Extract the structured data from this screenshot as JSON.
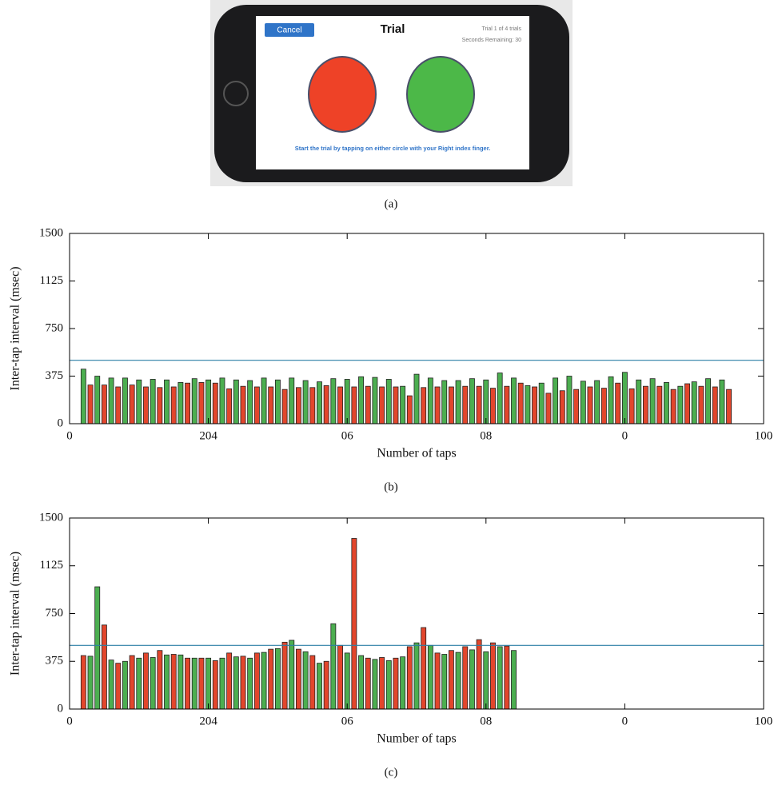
{
  "phone": {
    "cancel": "Cancel",
    "title": "Trial",
    "trial_count": "Trial 1 of 4 trials",
    "seconds": "Seconds Remaining: 30",
    "instruction": "Start the trial by tapping on either circle with your Right index finger.",
    "caption": "(a)"
  },
  "chart_data": [
    {
      "type": "bar",
      "caption": "(b)",
      "xlabel": "Number of taps",
      "ylabel": "Inter-tap interval (msec)",
      "xlim": [
        0,
        100
      ],
      "ylim": [
        0,
        1500
      ],
      "xticks": [
        0,
        {
          "value": 20,
          "label": "204"
        },
        {
          "value": 40,
          "label": "06"
        },
        {
          "value": 60,
          "label": "08"
        },
        {
          "value": 80,
          "label": "0"
        },
        100
      ],
      "yticks": [
        0,
        375,
        750,
        1125,
        1500
      ],
      "threshold": 500,
      "threshold_color": "#2b7fa6",
      "series": [
        {
          "color": "#4cae50",
          "x": [
            2,
            4,
            6,
            8,
            10,
            12,
            14,
            16,
            18,
            20,
            22,
            24,
            26,
            28,
            30,
            32,
            34,
            36,
            38,
            40,
            42,
            44,
            46,
            48,
            50,
            52,
            54,
            56,
            58,
            60,
            62,
            64,
            66,
            68,
            70,
            72,
            74,
            76,
            78,
            80,
            82,
            84,
            86,
            88,
            90,
            92,
            94
          ],
          "values": [
            430,
            375,
            360,
            360,
            345,
            350,
            345,
            325,
            355,
            345,
            360,
            345,
            340,
            360,
            345,
            360,
            340,
            330,
            355,
            350,
            370,
            365,
            350,
            295,
            390,
            360,
            340,
            340,
            355,
            345,
            400,
            360,
            300,
            320,
            360,
            375,
            335,
            340,
            370,
            405,
            345,
            355,
            325,
            295,
            330,
            355,
            345
          ]
        },
        {
          "color": "#e2462c",
          "x": [
            3,
            5,
            7,
            9,
            11,
            13,
            15,
            17,
            19,
            21,
            23,
            25,
            27,
            29,
            31,
            33,
            35,
            37,
            39,
            41,
            43,
            45,
            47,
            49,
            51,
            53,
            55,
            57,
            59,
            61,
            63,
            65,
            67,
            69,
            71,
            73,
            75,
            77,
            79,
            81,
            83,
            85,
            87,
            89,
            91,
            93,
            95
          ],
          "values": [
            305,
            305,
            290,
            305,
            290,
            285,
            290,
            320,
            325,
            320,
            275,
            295,
            290,
            290,
            270,
            285,
            285,
            300,
            290,
            290,
            295,
            290,
            290,
            220,
            285,
            290,
            290,
            295,
            295,
            280,
            295,
            320,
            290,
            240,
            260,
            270,
            290,
            280,
            320,
            275,
            295,
            295,
            270,
            315,
            295,
            290,
            270
          ]
        }
      ]
    },
    {
      "type": "bar",
      "caption": "(c)",
      "xlabel": "Number of taps",
      "ylabel": "Inter-tap interval (msec)",
      "xlim": [
        0,
        100
      ],
      "ylim": [
        0,
        1500
      ],
      "xticks": [
        0,
        {
          "value": 20,
          "label": "204"
        },
        {
          "value": 40,
          "label": "06"
        },
        {
          "value": 60,
          "label": "08"
        },
        {
          "value": 80,
          "label": "0"
        },
        100
      ],
      "yticks": [
        0,
        375,
        750,
        1125,
        1500
      ],
      "threshold": 500,
      "threshold_color": "#2b7fa6",
      "series": [
        {
          "color": "#4cae50",
          "x": [
            3,
            4,
            6,
            8,
            10,
            12,
            14,
            16,
            18,
            20,
            22,
            24,
            26,
            28,
            30,
            32,
            34,
            36,
            38,
            40,
            42,
            44,
            46,
            48,
            50,
            52,
            54,
            56,
            58,
            60,
            62,
            64
          ],
          "values": [
            415,
            960,
            385,
            375,
            400,
            405,
            425,
            425,
            400,
            400,
            400,
            410,
            400,
            445,
            475,
            540,
            450,
            360,
            670,
            440,
            420,
            390,
            380,
            410,
            520,
            500,
            430,
            445,
            465,
            450,
            490,
            460
          ]
        },
        {
          "color": "#e2462c",
          "x": [
            2,
            5,
            7,
            9,
            11,
            13,
            15,
            17,
            19,
            21,
            23,
            25,
            27,
            29,
            31,
            33,
            35,
            37,
            39,
            41,
            43,
            45,
            47,
            49,
            51,
            53,
            55,
            57,
            59,
            61,
            63
          ],
          "values": [
            420,
            660,
            360,
            420,
            440,
            460,
            430,
            400,
            400,
            380,
            440,
            415,
            440,
            470,
            525,
            470,
            420,
            375,
            500,
            1340,
            400,
            405,
            400,
            490,
            640,
            440,
            460,
            490,
            545,
            520,
            495
          ]
        }
      ]
    }
  ]
}
